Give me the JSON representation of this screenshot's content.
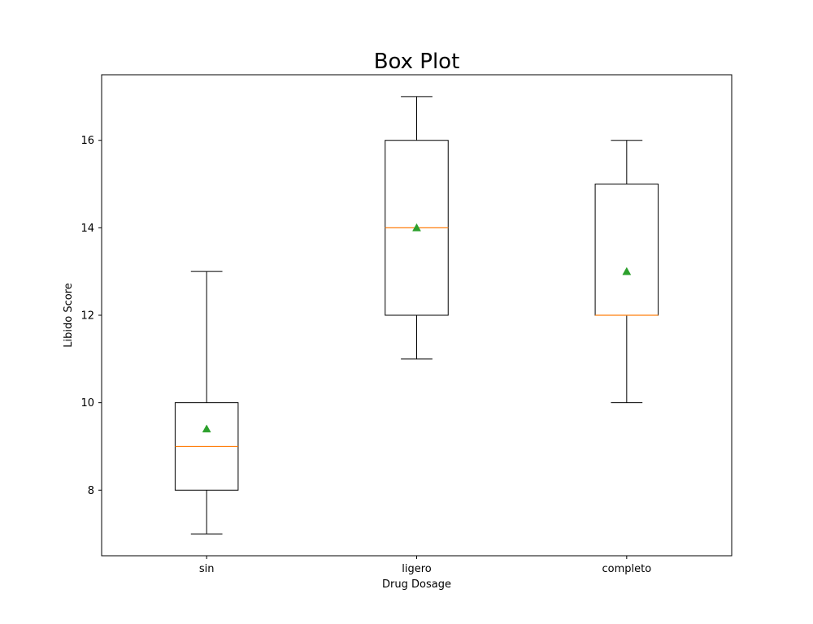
{
  "chart_data": {
    "type": "box",
    "title": "Box Plot",
    "xlabel": "Drug Dosage",
    "ylabel": "Libido Score",
    "categories": [
      "sin",
      "ligero",
      "completo"
    ],
    "boxes": [
      {
        "category": "sin",
        "whisker_low": 7,
        "q1": 8,
        "median": 9,
        "q3": 10,
        "whisker_high": 13,
        "mean": 9.4
      },
      {
        "category": "ligero",
        "whisker_low": 11,
        "q1": 12,
        "median": 14,
        "q3": 16,
        "whisker_high": 17,
        "mean": 14
      },
      {
        "category": "completo",
        "whisker_low": 10,
        "q1": 12,
        "median": 12,
        "q3": 15,
        "whisker_high": 16,
        "mean": 13
      }
    ],
    "ylim": [
      6.5,
      17.5
    ],
    "yticks": [
      8,
      10,
      12,
      14,
      16
    ],
    "grid": false,
    "colors": {
      "box": "#000000",
      "median": "#ff7f0e",
      "mean": "#2ca02c"
    }
  }
}
